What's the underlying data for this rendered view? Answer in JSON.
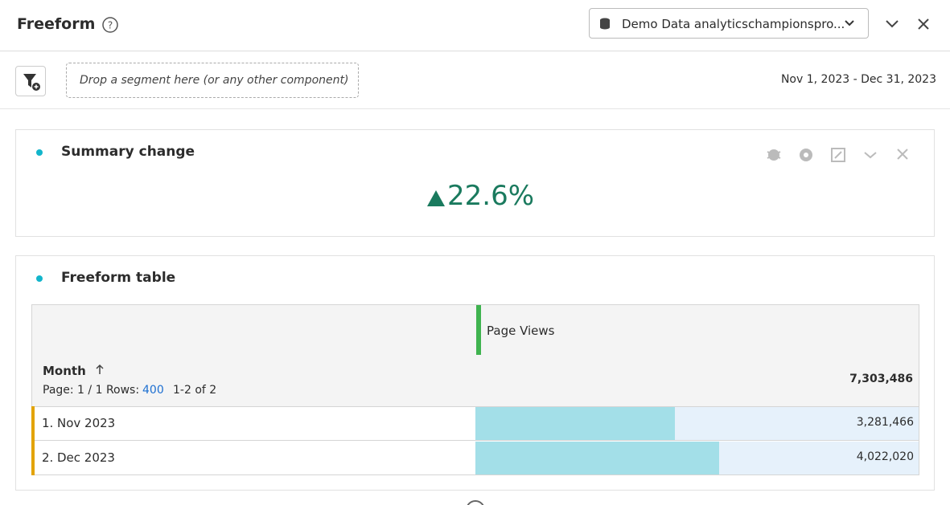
{
  "header": {
    "title": "Freeform",
    "data_view": "Demo Data analyticschampionspro..."
  },
  "toolbar": {
    "drop_zone": "Drop a segment here (or any other component)",
    "date_range": "Nov 1, 2023 - Dec 31, 2023"
  },
  "summary_panel": {
    "title": "Summary change",
    "change": "22.6%"
  },
  "table_panel": {
    "title": "Freeform table",
    "metric": "Page Views",
    "dimension": "Month",
    "paging": "Page: 1 / 1 Rows:",
    "rows_per_page": 400,
    "range": "1-2 of 2",
    "total": {
      "value": 7303486,
      "label": "7,303,486"
    },
    "rows": [
      {
        "index": "1.",
        "month": "Nov 2023",
        "value": 3281466,
        "label": "3,281,466"
      },
      {
        "index": "2.",
        "month": "Dec 2023",
        "value": 4022020,
        "label": "4,022,020"
      }
    ]
  }
}
